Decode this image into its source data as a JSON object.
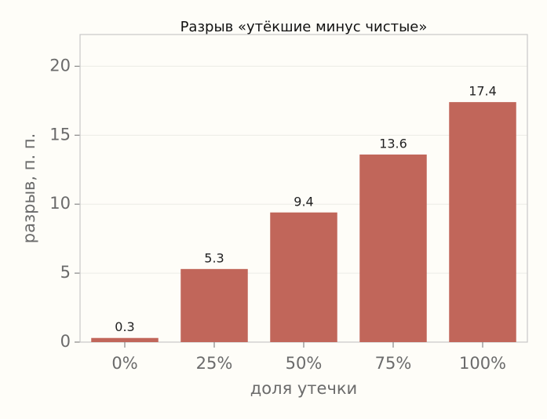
{
  "chart_data": {
    "type": "bar",
    "title": "Разрыв «утёкшие минус чистые»",
    "x_label": "доля утечки",
    "y_label": "разрыв, п. п.",
    "categories": [
      "0%",
      "25%",
      "50%",
      "75%",
      "100%"
    ],
    "values": [
      0.3,
      5.3,
      9.4,
      13.6,
      17.4
    ],
    "color": "#c1665a",
    "ylim": [
      0,
      22.3
    ],
    "yticks": [
      0,
      5,
      10,
      15,
      20
    ],
    "grid": true
  }
}
